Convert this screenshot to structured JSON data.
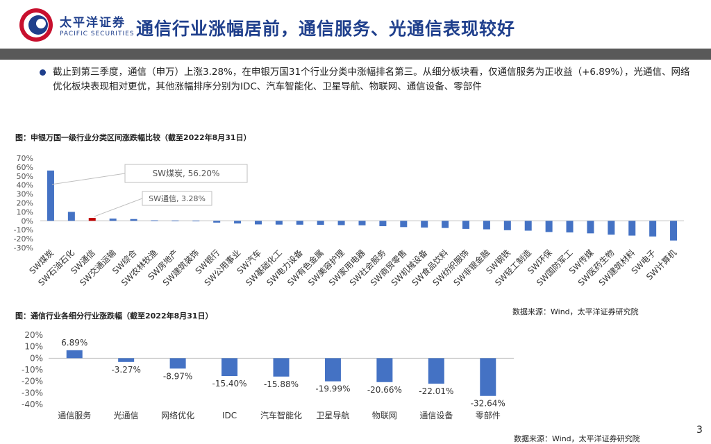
{
  "logo": {
    "name_cn": "太平洋证券",
    "name_en": "PACIFIC SECURITIES"
  },
  "title": "通信行业涨幅居前，通信服务、光通信表现较好",
  "intro": "截止到第三季度，通信（申万）上涨3.28%，在申银万国31个行业分类中涨幅排名第三。从细分板块看，仅通信服务为正收益（+6.89%），光通信、网络优化板块表现相对更优，其他涨幅排序分别为IDC、汽车智能化、卫星导航、物联网、通信设备、零部件",
  "chart1_caption": "图：申银万国一级行业分类区间涨跌幅比较（截至2022年8月31日）",
  "chart2_caption": "图：通信行业各细分行业涨跌幅（截至2022年8月31日）",
  "source1": "数据来源：Wind，太平洋证券研究院",
  "source2": "数据来源：Wind，太平洋证券研究院",
  "page_number": "3",
  "colors": {
    "brand": "#1f3f8c",
    "bar": "#4472c4",
    "highlight": "#c00000",
    "header_bar": "#595959"
  },
  "chart_data": [
    {
      "type": "bar",
      "title": "申银万国一级行业分类区间涨跌幅比较（截至2022年8月31日）",
      "categories": [
        "SW煤炭",
        "SW石油石化",
        "SW通信",
        "SW交通运输",
        "SW综合",
        "SW农林牧渔",
        "SW房地产",
        "SW建筑装饰",
        "SW银行",
        "SW公用事业",
        "SW汽车",
        "SW基础化工",
        "SW电力设备",
        "SW有色金属",
        "SW美容护理",
        "SW家用电器",
        "SW社会服务",
        "SW商贸零售",
        "SW机械设备",
        "SW食品饮料",
        "SW纺织服饰",
        "SW非银金融",
        "SW钢铁",
        "SW轻工制造",
        "SW环保",
        "SW国防军工",
        "SW传媒",
        "SW医药生物",
        "SW建筑材料",
        "SW电子",
        "SW计算机"
      ],
      "values": [
        56.2,
        10.0,
        3.28,
        2.5,
        2.0,
        0.5,
        0.3,
        0.2,
        -2.0,
        -3.0,
        -4.0,
        -4.2,
        -4.3,
        -4.5,
        -4.8,
        -5.0,
        -6.0,
        -7.0,
        -7.5,
        -8.0,
        -9.0,
        -9.5,
        -10.5,
        -11.0,
        -12.5,
        -13.0,
        -14.0,
        -15.5,
        -16.5,
        -17.5,
        -22.0
      ],
      "highlight_index": 2,
      "ylim": [
        -30,
        70
      ],
      "yticks": [
        "70%",
        "60%",
        "50%",
        "40%",
        "30%",
        "20%",
        "10%",
        "0%",
        "-10%",
        "-20%",
        "-30%"
      ],
      "annotations": [
        {
          "text": "SW煤炭, 56.20%",
          "category": "SW煤炭"
        },
        {
          "text": "SW通信, 3.28%",
          "category": "SW通信"
        }
      ]
    },
    {
      "type": "bar",
      "title": "通信行业各细分行业涨跌幅（截至2022年8月31日）",
      "categories": [
        "通信服务",
        "光通信",
        "网络优化",
        "IDC",
        "汽车智能化",
        "卫星导航",
        "物联网",
        "通信设备",
        "零部件"
      ],
      "values": [
        6.89,
        -3.27,
        -8.97,
        -15.4,
        -15.88,
        -19.99,
        -20.66,
        -22.01,
        -32.64
      ],
      "labels": [
        "6.89%",
        "-3.27%",
        "-8.97%",
        "-15.40%",
        "-15.88%",
        "-19.99%",
        "-20.66%",
        "-22.01%",
        "-32.64%"
      ],
      "ylim": [
        -40,
        20
      ],
      "yticks": [
        "20%",
        "10%",
        "0%",
        "-10%",
        "-20%",
        "-30%",
        "-40%"
      ]
    }
  ]
}
